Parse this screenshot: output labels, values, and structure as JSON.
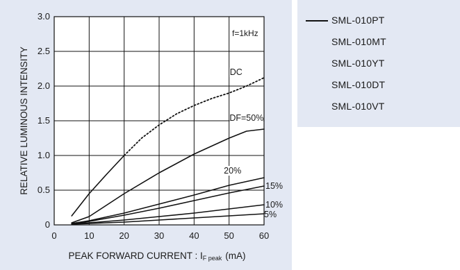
{
  "chart_data": {
    "type": "line",
    "xlabel": "PEAK  FORWARD  CURRENT : IF peak  (mA)",
    "xlabel_main": "PEAK  FORWARD  CURRENT : I",
    "xlabel_sub": "F peak",
    "xlabel_unit": "(mA)",
    "ylabel": "RELATIVE  LUMINOUS  INTENSITY",
    "xlim": [
      0,
      60
    ],
    "ylim": [
      0,
      3.0
    ],
    "x_ticks": [
      "0",
      "10",
      "20",
      "30",
      "40",
      "50",
      "60"
    ],
    "y_ticks": [
      "0",
      "0.5",
      "1.0",
      "1.5",
      "2.0",
      "2.5",
      "3.0"
    ],
    "grid": true,
    "annotation": "f=1kHz",
    "series": [
      {
        "name": "DC",
        "x": [
          5,
          10,
          15,
          20
        ],
        "y": [
          0.13,
          0.45,
          0.73,
          1.0
        ]
      },
      {
        "name": "DC",
        "style": "dotted",
        "x": [
          20,
          25,
          30,
          35,
          40,
          45,
          50,
          55,
          60
        ],
        "y": [
          1.0,
          1.25,
          1.44,
          1.6,
          1.72,
          1.82,
          1.9,
          2.0,
          2.12
        ]
      },
      {
        "name": "DF=50%",
        "x": [
          5,
          10,
          20,
          30,
          40,
          50,
          55,
          60
        ],
        "y": [
          0.03,
          0.12,
          0.45,
          0.75,
          1.02,
          1.25,
          1.35,
          1.38
        ]
      },
      {
        "name": "20%",
        "x": [
          5,
          10,
          20,
          30,
          40,
          50,
          60
        ],
        "y": [
          0.02,
          0.06,
          0.17,
          0.3,
          0.43,
          0.57,
          0.68
        ]
      },
      {
        "name": "15%",
        "x": [
          5,
          10,
          20,
          30,
          40,
          50,
          60
        ],
        "y": [
          0.02,
          0.05,
          0.14,
          0.24,
          0.35,
          0.46,
          0.56
        ]
      },
      {
        "name": "10%",
        "x": [
          5,
          10,
          20,
          30,
          40,
          50,
          60
        ],
        "y": [
          0.02,
          0.03,
          0.07,
          0.12,
          0.17,
          0.23,
          0.29
        ]
      },
      {
        "name": "5%",
        "x": [
          5,
          10,
          20,
          30,
          40,
          50,
          60
        ],
        "y": [
          0.01,
          0.02,
          0.04,
          0.07,
          0.1,
          0.13,
          0.16
        ]
      }
    ],
    "curve_labels": [
      "DC",
      "DF=50%",
      "20%",
      "15%",
      "10%",
      "5%"
    ]
  },
  "legend": {
    "items": [
      "SML-010PT",
      "SML-010MT",
      "SML-010YT",
      "SML-010DT",
      "SML-010VT"
    ]
  },
  "colors": {
    "panel_bg": "#e3e8f3",
    "plot_bg": "#ffffff",
    "line": "#111111"
  }
}
